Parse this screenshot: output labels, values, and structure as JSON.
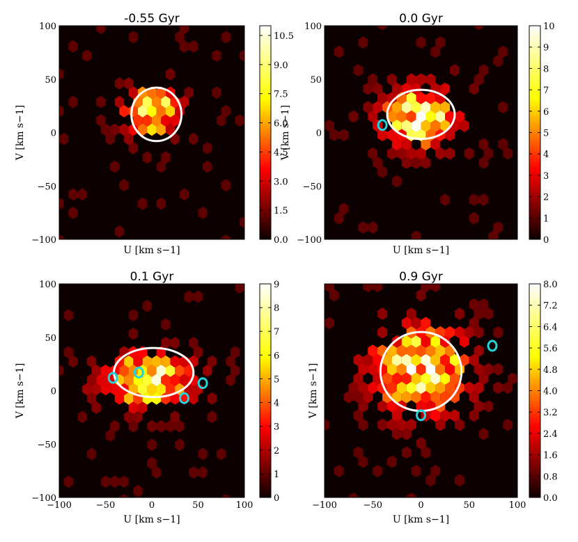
{
  "chart_data": [
    {
      "type": "heatmap",
      "title": "-0.55 Gyr",
      "xlabel": "",
      "xlabel_unit": "U [km s−1]",
      "ylabel": "V [km s−1]",
      "xlim": [
        -100,
        100
      ],
      "ylim": [
        -100,
        100
      ],
      "x_ticks_shown": false,
      "y_ticks": [
        "100",
        "50",
        "0",
        "−50",
        "−100"
      ],
      "colorbar": {
        "min": 0,
        "max": 11,
        "ticks": [
          "10.5",
          "9.0",
          "7.5",
          "6.0",
          "4.5",
          "3.0",
          "1.5",
          "0.0"
        ],
        "tick_values": [
          10.5,
          9.0,
          7.5,
          6.0,
          4.5,
          3.0,
          1.5,
          0.0
        ]
      },
      "ellipse": {
        "center": [
          5,
          17
        ],
        "semi_axes": [
          27,
          25
        ]
      },
      "stream_markers": [],
      "density_center": [
        0,
        20
      ],
      "density_spread": [
        28,
        22
      ],
      "peak_value": 10.8
    },
    {
      "type": "heatmap",
      "title": "0.0 Gyr",
      "xlabel_unit": "U [km s−1]",
      "ylabel": "V [km s−1]",
      "xlim": [
        -100,
        100
      ],
      "ylim": [
        -100,
        100
      ],
      "x_ticks_shown": false,
      "y_ticks": [
        "100",
        "50",
        "0",
        "−50",
        "−100"
      ],
      "colorbar": {
        "min": 0,
        "max": 10,
        "ticks": [
          "10",
          "9",
          "8",
          "7",
          "6",
          "5",
          "4",
          "3",
          "2",
          "1",
          "0"
        ],
        "tick_values": [
          10,
          9,
          8,
          7,
          6,
          5,
          4,
          3,
          2,
          1,
          0
        ]
      },
      "ellipse": {
        "center": [
          0,
          17
        ],
        "semi_axes": [
          35,
          23
        ]
      },
      "stream_markers": [
        [
          -40,
          7
        ]
      ],
      "density_center": [
        0,
        15
      ],
      "density_spread": [
        38,
        28
      ],
      "peak_value": 10
    },
    {
      "type": "heatmap",
      "title": "0.1 Gyr",
      "xlabel_unit": "U [km s−1]",
      "ylabel": "V [km s−1]",
      "xlim": [
        -100,
        100
      ],
      "ylim": [
        -100,
        100
      ],
      "x_ticks": [
        "−100",
        "−50",
        "0",
        "50",
        "100"
      ],
      "y_ticks": [
        "100",
        "50",
        "0",
        "−50",
        "−100"
      ],
      "colorbar": {
        "min": 0,
        "max": 9,
        "ticks": [
          "9",
          "8",
          "7",
          "6",
          "5",
          "4",
          "3",
          "2",
          "1",
          "0"
        ],
        "tick_values": [
          9,
          8,
          7,
          6,
          5,
          4,
          3,
          2,
          1,
          0
        ]
      },
      "ellipse": {
        "center": [
          2,
          17
        ],
        "semi_axes": [
          43,
          23
        ]
      },
      "stream_markers": [
        [
          -42,
          12
        ],
        [
          -14,
          17
        ],
        [
          35,
          -7
        ],
        [
          55,
          7
        ]
      ],
      "density_center": [
        -5,
        10
      ],
      "density_spread": [
        48,
        24
      ],
      "peak_value": 9
    },
    {
      "type": "heatmap",
      "title": "0.9 Gyr",
      "xlabel_unit": "U [km s−1]",
      "ylabel": "V [km s−1]",
      "xlim": [
        -100,
        100
      ],
      "ylim": [
        -100,
        100
      ],
      "x_ticks": [
        "−100",
        "−50",
        "0",
        "50",
        "100"
      ],
      "y_ticks_shown": false,
      "colorbar": {
        "min": 0,
        "max": 8,
        "ticks": [
          "8.0",
          "7.2",
          "6.4",
          "5.6",
          "4.8",
          "4.0",
          "3.2",
          "2.4",
          "1.6",
          "0.8",
          "0.0"
        ],
        "tick_values": [
          8.0,
          7.2,
          6.4,
          5.6,
          4.8,
          4.0,
          3.2,
          2.4,
          1.6,
          0.8,
          0.0
        ]
      },
      "ellipse": {
        "center": [
          0,
          18
        ],
        "semi_axes": [
          42,
          37
        ]
      },
      "stream_markers": [
        [
          0,
          -23
        ],
        [
          74,
          42
        ]
      ],
      "density_center": [
        0,
        20
      ],
      "density_spread": [
        50,
        40
      ],
      "peak_value": 8
    }
  ],
  "colors": {
    "background": "#0d0000",
    "ellipse": "#ffffff",
    "marker": "#22d3dc"
  }
}
